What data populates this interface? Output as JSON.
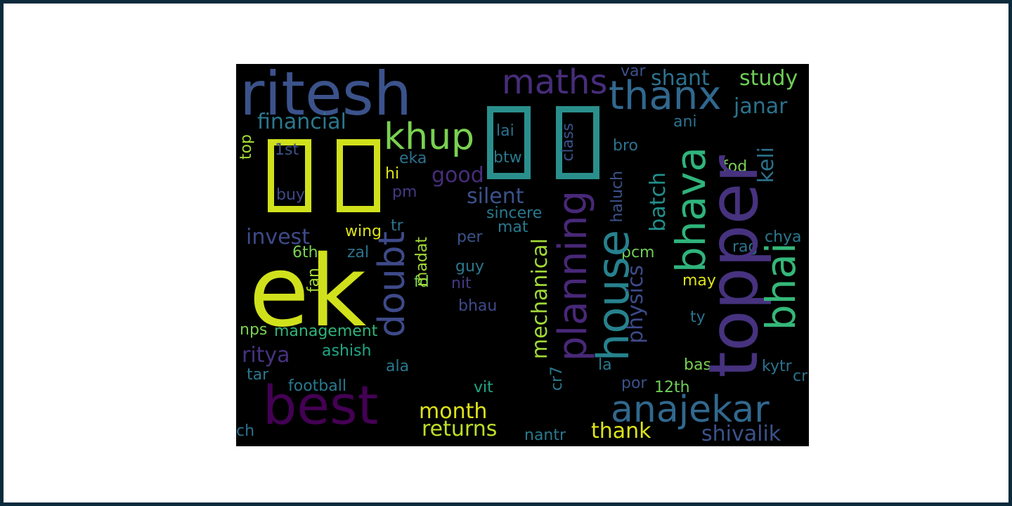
{
  "palette": {
    "frame_border": "#0b2a3c",
    "page_background": "#ffffff",
    "cloud_background": "#000000"
  },
  "glyph_boxes": [
    {
      "label": "tofu-box-yellow-1",
      "color": "#d0e11c"
    },
    {
      "label": "tofu-box-yellow-2",
      "color": "#d0e11c"
    },
    {
      "label": "tofu-box-teal-1",
      "color": "#2a8f8c"
    },
    {
      "label": "tofu-box-teal-2",
      "color": "#2a8f8c"
    }
  ],
  "words": [
    {
      "text": "ritesh",
      "color": "#3b528b"
    },
    {
      "text": "ek",
      "color": "#d0e11c"
    },
    {
      "text": "best",
      "color": "#440154"
    },
    {
      "text": "khup",
      "color": "#7ad151"
    },
    {
      "text": "maths",
      "color": "#472d7b"
    },
    {
      "text": "thanx",
      "color": "#31688e"
    },
    {
      "text": "topper",
      "color": "#46327e"
    },
    {
      "text": "bhava",
      "color": "#2fb47c"
    },
    {
      "text": "bhai",
      "color": "#35b779"
    },
    {
      "text": "anajekar",
      "color": "#31688e"
    },
    {
      "text": "house",
      "color": "#26828e"
    },
    {
      "text": "planning",
      "color": "#482878"
    },
    {
      "text": "doubt",
      "color": "#3e4a89"
    },
    {
      "text": "financial",
      "color": "#2a788e"
    },
    {
      "text": "invest",
      "color": "#3e4a89"
    },
    {
      "text": "ritya",
      "color": "#46327e"
    },
    {
      "text": "month",
      "color": "#dde318"
    },
    {
      "text": "returns",
      "color": "#bddf26"
    },
    {
      "text": "thank",
      "color": "#dde318"
    },
    {
      "text": "shivalik",
      "color": "#3b528b"
    },
    {
      "text": "study",
      "color": "#6ece58"
    },
    {
      "text": "shant",
      "color": "#2c728e"
    },
    {
      "text": "janar",
      "color": "#2c728e"
    },
    {
      "text": "silent",
      "color": "#3b528b"
    },
    {
      "text": "good",
      "color": "#472d7b"
    },
    {
      "text": "batch",
      "color": "#21918c"
    },
    {
      "text": "keli",
      "color": "#2c728e"
    },
    {
      "text": "mechanical",
      "color": "#a2da37"
    },
    {
      "text": "physics",
      "color": "#3e4a89"
    },
    {
      "text": "management",
      "color": "#2fb47c"
    },
    {
      "text": "ashish",
      "color": "#21a685"
    },
    {
      "text": "football",
      "color": "#2a788e"
    },
    {
      "text": "class",
      "color": "#3b528b"
    },
    {
      "text": "btw",
      "color": "#2a788e"
    },
    {
      "text": "lai",
      "color": "#2c728e"
    },
    {
      "text": "eka",
      "color": "#2c728e"
    },
    {
      "text": "hi",
      "color": "#dde318"
    },
    {
      "text": "pm",
      "color": "#443983"
    },
    {
      "text": "sincere",
      "color": "#2a788e"
    },
    {
      "text": "mat",
      "color": "#2a788e"
    },
    {
      "text": "wing",
      "color": "#dde318"
    },
    {
      "text": "tr",
      "color": "#2c728e"
    },
    {
      "text": "per",
      "color": "#3b528b"
    },
    {
      "text": "guy",
      "color": "#2a788e"
    },
    {
      "text": "nit",
      "color": "#443983"
    },
    {
      "text": "bhau",
      "color": "#3e4a89"
    },
    {
      "text": "fd",
      "color": "#7ad151"
    },
    {
      "text": "madat",
      "color": "#a2da37"
    },
    {
      "text": "zal",
      "color": "#2c728e"
    },
    {
      "text": "6th",
      "color": "#7ad151"
    },
    {
      "text": "fan",
      "color": "#a2da37"
    },
    {
      "text": "nps",
      "color": "#7ad151"
    },
    {
      "text": "tar",
      "color": "#2a788e"
    },
    {
      "text": "ala",
      "color": "#2a788e"
    },
    {
      "text": "vit",
      "color": "#21a685"
    },
    {
      "text": "cr7",
      "color": "#2a788e"
    },
    {
      "text": "nantr",
      "color": "#2a788e"
    },
    {
      "text": "la",
      "color": "#2a788e"
    },
    {
      "text": "por",
      "color": "#3b528b"
    },
    {
      "text": "12th",
      "color": "#6ece58"
    },
    {
      "text": "bas",
      "color": "#7ad151"
    },
    {
      "text": "kytr",
      "color": "#2c728e"
    },
    {
      "text": "cr",
      "color": "#2c728e"
    },
    {
      "text": "ty",
      "color": "#2c728e"
    },
    {
      "text": "may",
      "color": "#dde318"
    },
    {
      "text": "rag",
      "color": "#2c728e"
    },
    {
      "text": "chya",
      "color": "#2a788e"
    },
    {
      "text": "pcm",
      "color": "#6ece58"
    },
    {
      "text": "haluch",
      "color": "#3b528b"
    },
    {
      "text": "bro",
      "color": "#2c728e"
    },
    {
      "text": "fod",
      "color": "#7ad151"
    },
    {
      "text": "ani",
      "color": "#2c728e"
    },
    {
      "text": "var",
      "color": "#3b528b"
    },
    {
      "text": "top",
      "color": "#a2da37"
    },
    {
      "text": "1st",
      "color": "#3b528b"
    },
    {
      "text": "buy",
      "color": "#3e4a89"
    },
    {
      "text": "ch",
      "color": "#2c728e"
    }
  ]
}
